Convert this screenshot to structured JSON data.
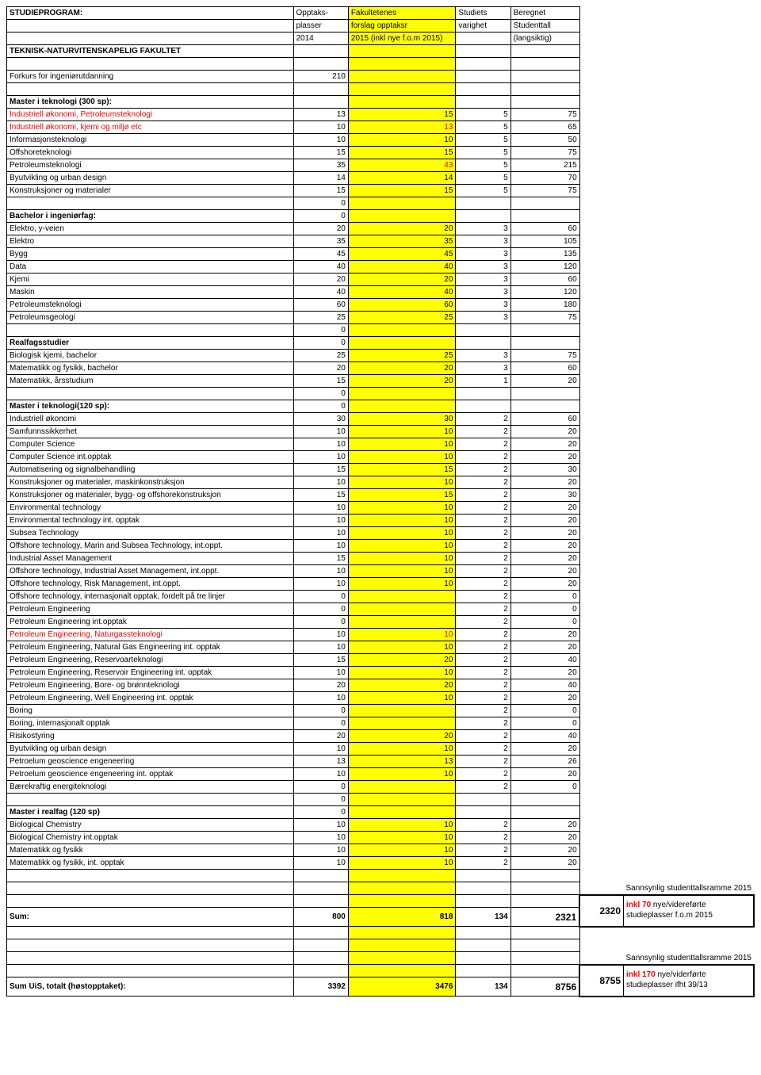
{
  "header": {
    "program": "STUDIEPROGRAM:",
    "opptaks1": "Opptaks-",
    "opptaks2": "plasser",
    "opptaks3": "2014",
    "fak1": "Fakultetenes",
    "fak2": "forslag opptaksr",
    "fak3": "2015 (inkl nye f.o.m 2015)",
    "studiet1": "Studiets",
    "studiet2": "varighet",
    "beregnet1": "Beregnet",
    "beregnet2": "Studenttall",
    "beregnet3": "(langsiktig)",
    "faculty": "TEKNISK-NATURVITENSKAPELIG FAKULTET"
  },
  "forkurs": {
    "label": "Forkurs for ingeniørutdanning",
    "b": "210"
  },
  "sections": {
    "master300": "Master i teknologi (300 sp):",
    "bachelor": "Bachelor i ingeniørfag:",
    "realfag": "Realfagsstudier",
    "master120": "Master i teknologi(120 sp):",
    "masterRealfag": "Master i realfag (120 sp)"
  },
  "rows": {
    "m1": {
      "a": "Industriell økonomi, Petroleumsteknologi",
      "b": "13",
      "c": "15",
      "d": "5",
      "e": "75"
    },
    "m2": {
      "a": "Industriell økonomi, kjemi og miljø etc",
      "b": "10",
      "c": "13",
      "d": "5",
      "e": "65"
    },
    "m3": {
      "a": "Informasjonsteknologi",
      "b": "10",
      "c": "10",
      "d": "5",
      "e": "50"
    },
    "m4": {
      "a": "Offshoreteknologi",
      "b": "15",
      "c": "15",
      "d": "5",
      "e": "75"
    },
    "m5": {
      "a": "Petroleumsteknologi",
      "b": "35",
      "c": "43",
      "d": "5",
      "e": "215"
    },
    "m6": {
      "a": "Byutvikling og urban design",
      "b": "14",
      "c": "14",
      "d": "5",
      "e": "70"
    },
    "m7": {
      "a": "Konstruksjoner og materialer",
      "b": "15",
      "c": "15",
      "d": "5",
      "e": "75"
    },
    "b1": {
      "a": "Elektro, y-veien",
      "b": "20",
      "c": "20",
      "d": "3",
      "e": "60"
    },
    "b2": {
      "a": "Elektro",
      "b": "35",
      "c": "35",
      "d": "3",
      "e": "105"
    },
    "b3": {
      "a": "Bygg",
      "b": "45",
      "c": "45",
      "d": "3",
      "e": "135"
    },
    "b4": {
      "a": "Data",
      "b": "40",
      "c": "40",
      "d": "3",
      "e": "120"
    },
    "b5": {
      "a": "Kjemi",
      "b": "20",
      "c": "20",
      "d": "3",
      "e": "60"
    },
    "b6": {
      "a": "Maskin",
      "b": "40",
      "c": "40",
      "d": "3",
      "e": "120"
    },
    "b7": {
      "a": "Petroleumsteknologi",
      "b": "60",
      "c": "60",
      "d": "3",
      "e": "180"
    },
    "b8": {
      "a": "Petroleumsgeologi",
      "b": "25",
      "c": "25",
      "d": "3",
      "e": "75"
    },
    "r1": {
      "a": "Biologisk kjemi, bachelor",
      "b": "25",
      "c": "25",
      "d": "3",
      "e": "75"
    },
    "r2": {
      "a": "Matematikk og fysikk, bachelor",
      "b": "20",
      "c": "20",
      "d": "3",
      "e": "60"
    },
    "r3": {
      "a": "Matematikk, årsstudium",
      "b": "15",
      "c": "20",
      "d": "1",
      "e": "20"
    },
    "t1": {
      "a": "Industriell økonomi",
      "b": "30",
      "c": "30",
      "d": "2",
      "e": "60"
    },
    "t2": {
      "a": "Samfunnssikkerhet",
      "b": "10",
      "c": "10",
      "d": "2",
      "e": "20"
    },
    "t3": {
      "a": "Computer Science",
      "b": "10",
      "c": "10",
      "d": "2",
      "e": "20"
    },
    "t4": {
      "a": "Computer Science int.opptak",
      "b": "10",
      "c": "10",
      "d": "2",
      "e": "20"
    },
    "t5": {
      "a": "Automatisering og signalbehandling",
      "b": "15",
      "c": "15",
      "d": "2",
      "e": "30"
    },
    "t6": {
      "a": "Konstruksjoner og materialer, maskinkonstruksjon",
      "b": "10",
      "c": "10",
      "d": "2",
      "e": "20"
    },
    "t7": {
      "a": "Konstruksjoner og materialer, bygg- og offshorekonstruksjon",
      "b": "15",
      "c": "15",
      "d": "2",
      "e": "30"
    },
    "t8": {
      "a": "Environmental technology",
      "b": "10",
      "c": "10",
      "d": "2",
      "e": "20"
    },
    "t9": {
      "a": "Environmental technology int. opptak",
      "b": "10",
      "c": "10",
      "d": "2",
      "e": "20"
    },
    "t10": {
      "a": "Subsea Technology",
      "b": "10",
      "c": "10",
      "d": "2",
      "e": "20"
    },
    "t11": {
      "a": "Offshore technology, Marin and Subsea Technology, int.oppt.",
      "b": "10",
      "c": "10",
      "d": "2",
      "e": "20"
    },
    "t12": {
      "a": "Industrial Asset Management",
      "b": "15",
      "c": "10",
      "d": "2",
      "e": "20"
    },
    "t13": {
      "a": "Offshore technology, Industrial Asset Management, int.oppt.",
      "b": "10",
      "c": "10",
      "d": "2",
      "e": "20"
    },
    "t14": {
      "a": "Offshore technology, Risk Management, int.oppt.",
      "b": "10",
      "c": "10",
      "d": "2",
      "e": "20"
    },
    "t15": {
      "a": "Offshore technology, internasjonalt opptak, fordelt på tre linjer",
      "b": "0",
      "c": "",
      "d": "2",
      "e": "0"
    },
    "t16": {
      "a": "Petroleum Engineering",
      "b": "0",
      "c": "",
      "d": "2",
      "e": "0"
    },
    "t17": {
      "a": "Petroleum Engineering int.opptak",
      "b": "0",
      "c": "",
      "d": "2",
      "e": "0"
    },
    "t18": {
      "a": "Petroleum Engineering, Naturgassteknologi",
      "b": "10",
      "c": "10",
      "d": "2",
      "e": "20"
    },
    "t19": {
      "a": "Petroleum Engineering, Natural Gas Engineering int. opptak",
      "b": "10",
      "c": "10",
      "d": "2",
      "e": "20"
    },
    "t20": {
      "a": "Petroleum Engineering, Reservoarteknologi",
      "b": "15",
      "c": "20",
      "d": "2",
      "e": "40"
    },
    "t21": {
      "a": "Petroleum Engineering, Reservoir Engineering int. opptak",
      "b": "10",
      "c": "10",
      "d": "2",
      "e": "20"
    },
    "t22": {
      "a": "Petroleum Engineering, Bore- og brønnteknologi",
      "b": "20",
      "c": "20",
      "d": "2",
      "e": "40"
    },
    "t23": {
      "a": "Petroleum Engineering, Well Engineering int. opptak",
      "b": "10",
      "c": "10",
      "d": "2",
      "e": "20"
    },
    "t24": {
      "a": "Boring",
      "b": "0",
      "c": "",
      "d": "2",
      "e": "0"
    },
    "t25": {
      "a": "Boring, internasjonalt opptak",
      "b": "0",
      "c": "",
      "d": "2",
      "e": "0"
    },
    "t26": {
      "a": "Risikostyring",
      "b": "20",
      "c": "20",
      "d": "2",
      "e": "40"
    },
    "t27": {
      "a": "Byutvikling og urban design",
      "b": "10",
      "c": "10",
      "d": "2",
      "e": "20"
    },
    "t28": {
      "a": "Petroelum geoscience engeneering",
      "b": "13",
      "c": "13",
      "d": "2",
      "e": "26"
    },
    "t29": {
      "a": "Petroelum geoscience engeneering int. opptak",
      "b": "10",
      "c": "10",
      "d": "2",
      "e": "20"
    },
    "t30": {
      "a": "Bærekraftig energiteknologi",
      "b": "0",
      "c": "",
      "d": "2",
      "e": "0"
    },
    "mr1": {
      "a": "Biological Chemistry",
      "b": "10",
      "c": "10",
      "d": "2",
      "e": "20"
    },
    "mr2": {
      "a": "Biological Chemistry int.opptak",
      "b": "10",
      "c": "10",
      "d": "2",
      "e": "20"
    },
    "mr3": {
      "a": "Matematikk og fysikk",
      "b": "10",
      "c": "10",
      "d": "2",
      "e": "20"
    },
    "mr4": {
      "a": "Matematikk og fysikk, int. opptak",
      "b": "10",
      "c": "10",
      "d": "2",
      "e": "20"
    }
  },
  "zero": "0",
  "sum": {
    "label": "Sum:",
    "b": "800",
    "c": "818",
    "d": "134",
    "e": "2321",
    "f": "2320"
  },
  "sumUis": {
    "label": "Sum UiS, totalt (høstopptaket):",
    "b": "3392",
    "c": "3476",
    "d": "134",
    "e": "8756",
    "f": "8755"
  },
  "notes": {
    "ramme": "Sannsynlig studenttallsramme 2015",
    "inkl70a": "inkl 70",
    "inkl70b": " nye/videreførte",
    "studie1": "studieplasser f.o.m 2015",
    "inkl170a": "inkl 170",
    "inkl170b": " nye/viderførte",
    "studie2": "studieplasser ifht 39/13"
  }
}
